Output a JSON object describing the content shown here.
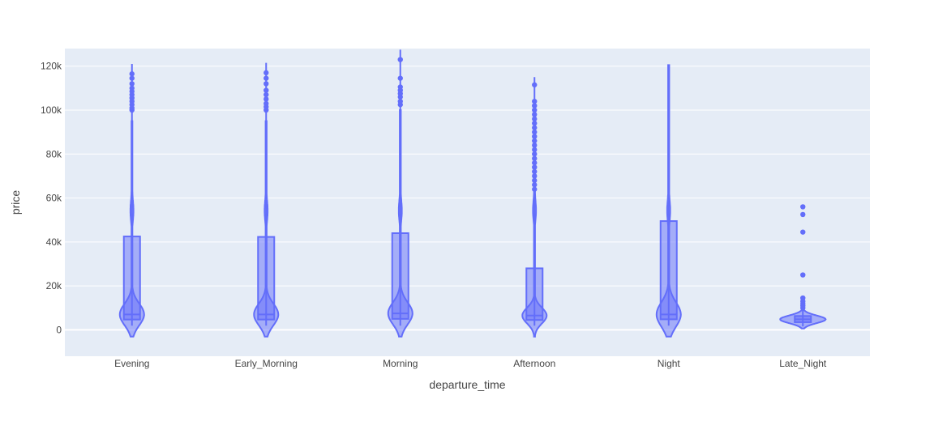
{
  "chart_data": {
    "type": "violin",
    "xlabel": "departure_time",
    "ylabel": "price",
    "ylim": [
      -12000,
      128000
    ],
    "yticks": [
      0,
      20000,
      40000,
      60000,
      80000,
      100000,
      120000
    ],
    "ytick_labels": [
      "0",
      "20k",
      "40k",
      "60k",
      "80k",
      "100k",
      "120k"
    ],
    "grid": true,
    "plot_bgcolor": "#e5ecf6",
    "trace_color": "#636efa",
    "categories": [
      "Evening",
      "Early_Morning",
      "Morning",
      "Afternoon",
      "Night",
      "Late_Night"
    ],
    "series": [
      {
        "category": "Evening",
        "min": 1900,
        "q1": 4700,
        "median": 7000,
        "q3": 42500,
        "max": 121000,
        "kde_max": 95000,
        "outliers": [
          100000,
          101000,
          102500,
          104000,
          105500,
          107000,
          108500,
          110000,
          112000,
          114500,
          116500
        ]
      },
      {
        "category": "Early_Morning",
        "min": 1900,
        "q1": 4700,
        "median": 7000,
        "q3": 42300,
        "max": 121500,
        "kde_max": 95000,
        "outliers": [
          100000,
          101500,
          103000,
          105000,
          107000,
          109000,
          112000,
          114500,
          117000
        ]
      },
      {
        "category": "Morning",
        "min": 1900,
        "q1": 5000,
        "median": 7500,
        "q3": 44000,
        "max": 127500,
        "kde_max": 100000,
        "outliers": [
          102500,
          104000,
          106000,
          107500,
          109000,
          110500,
          114500,
          123000
        ]
      },
      {
        "category": "Afternoon",
        "min": 1900,
        "q1": 4500,
        "median": 6500,
        "q3": 28000,
        "max": 115000,
        "kde_max": 63000,
        "outliers": [
          64000,
          66000,
          68000,
          70000,
          72000,
          74000,
          76000,
          78000,
          80000,
          82000,
          84000,
          86000,
          88000,
          90000,
          92000,
          94000,
          96000,
          98000,
          100000,
          102000,
          104000,
          111500
        ]
      },
      {
        "category": "Night",
        "min": 1900,
        "q1": 4800,
        "median": 7000,
        "q3": 49500,
        "max": 120500,
        "kde_max": 120500,
        "outliers": []
      },
      {
        "category": "Late_Night",
        "min": 1600,
        "q1": 3500,
        "median": 4800,
        "q3": 6300,
        "max": 9000,
        "kde_max": 9000,
        "outliers": [
          10000,
          11000,
          12000,
          13000,
          14500,
          25000,
          44500,
          52500,
          56000
        ]
      }
    ]
  }
}
